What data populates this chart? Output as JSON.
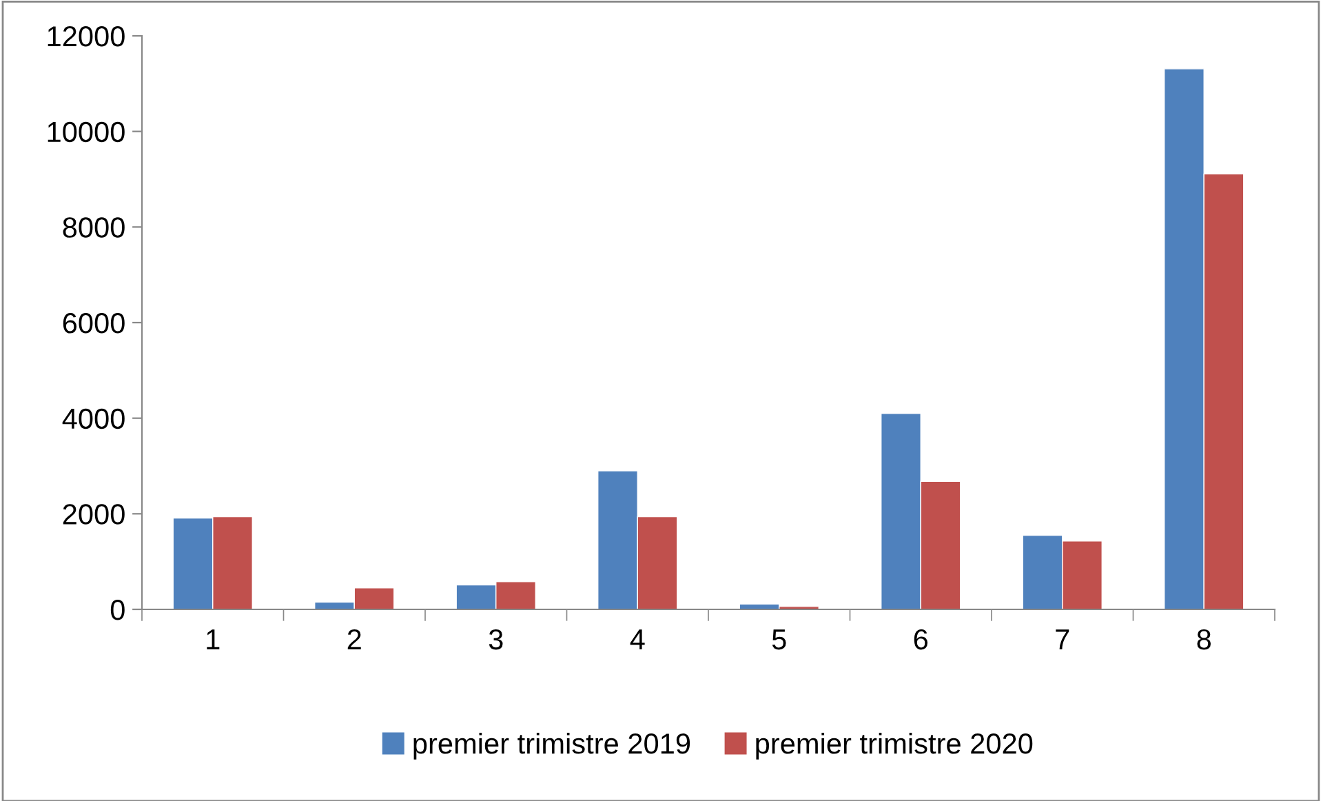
{
  "chart_data": {
    "type": "bar",
    "categories": [
      "1",
      "2",
      "3",
      "4",
      "5",
      "6",
      "7",
      "8"
    ],
    "series": [
      {
        "name": "premier trimistre 2019",
        "color": "#4f81bd",
        "values": [
          1910,
          150,
          510,
          2900,
          110,
          4100,
          1550,
          11310
        ]
      },
      {
        "name": "premier trimistre 2020",
        "color": "#c0504d",
        "values": [
          1940,
          450,
          580,
          1940,
          60,
          2680,
          1430,
          9110
        ]
      }
    ],
    "ylim": [
      0,
      12000
    ],
    "yticks": [
      0,
      2000,
      4000,
      6000,
      8000,
      10000,
      12000
    ],
    "grid": false,
    "legend": "bottom"
  }
}
